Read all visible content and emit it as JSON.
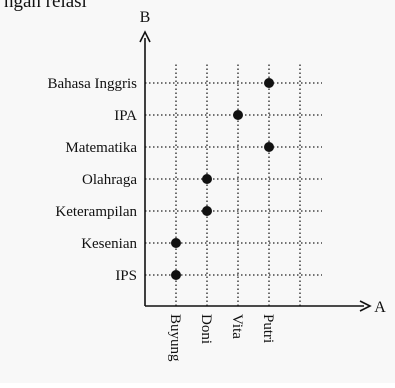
{
  "caption": "ngan relasi",
  "chart_data": {
    "type": "scatter",
    "title": "",
    "xlabel": "A",
    "ylabel": "B",
    "x_categories": [
      "Buyung",
      "Doni",
      "Vita",
      "Putri"
    ],
    "y_categories": [
      "IPS",
      "Kesenian",
      "Keterampilan",
      "Olahraga",
      "Matematika",
      "IPA",
      "Bahasa Inggris"
    ],
    "points": [
      {
        "x": "Putri",
        "y": "Bahasa Inggris"
      },
      {
        "x": "Vita",
        "y": "IPA"
      },
      {
        "x": "Putri",
        "y": "Matematika"
      },
      {
        "x": "Doni",
        "y": "Olahraga"
      },
      {
        "x": "Doni",
        "y": "Keterampilan"
      },
      {
        "x": "Buyung",
        "y": "Kesenian"
      },
      {
        "x": "Buyung",
        "y": "IPS"
      }
    ],
    "grid": true,
    "grid_style": "dotted",
    "legend": "none",
    "colors": {
      "axis": "#111111",
      "grid": "#222222",
      "point": "#111111",
      "background": "#f8f8f8"
    }
  }
}
